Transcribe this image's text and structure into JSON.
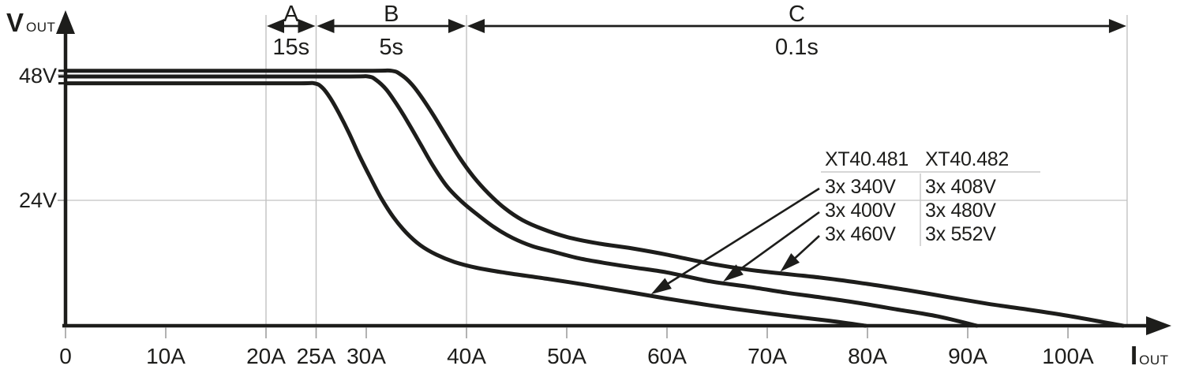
{
  "chart_data": {
    "type": "line",
    "title": "",
    "xlabel": {
      "main": "I",
      "sub": "OUT"
    },
    "ylabel": {
      "main": "V",
      "sub": "OUT"
    },
    "xlim": [
      0,
      108.5
    ],
    "ylim": [
      0,
      56
    ],
    "grid": {
      "vertical_amps": [
        20,
        25,
        40,
        105.9
      ],
      "horizontal_volts": [
        24
      ]
    },
    "x_ticks": [
      {
        "value": 0,
        "label": "0"
      },
      {
        "value": 10,
        "label": "10A"
      },
      {
        "value": 20,
        "label": "20A"
      },
      {
        "value": 25,
        "label": "25A"
      },
      {
        "value": 30,
        "label": "30A"
      },
      {
        "value": 40,
        "label": "40A"
      },
      {
        "value": 50,
        "label": "50A"
      },
      {
        "value": 60,
        "label": "60A"
      },
      {
        "value": 70,
        "label": "70A"
      },
      {
        "value": 80,
        "label": "80A"
      },
      {
        "value": 90,
        "label": "90A"
      },
      {
        "value": 100,
        "label": "100A"
      }
    ],
    "y_ticks": [
      {
        "value": 24,
        "label": "24V"
      },
      {
        "value": 48,
        "label": "48V"
      }
    ],
    "zones": [
      {
        "label": "A",
        "duration": "15s",
        "from_amps": 20,
        "to_amps": 25
      },
      {
        "label": "B",
        "duration": "5s",
        "from_amps": 25,
        "to_amps": 40
      },
      {
        "label": "C",
        "duration": "0.1s",
        "from_amps": 40,
        "to_amps": 105.9
      }
    ],
    "series": [
      {
        "name": "3x 340V / 3x 408V",
        "points": [
          [
            0,
            46.4
          ],
          [
            12,
            46.4
          ],
          [
            23,
            46.4
          ],
          [
            24.8,
            46.4
          ],
          [
            25.6,
            45.6
          ],
          [
            26.4,
            43.6
          ],
          [
            27.3,
            40.6
          ],
          [
            28.3,
            36.8
          ],
          [
            29.3,
            32.6
          ],
          [
            30.4,
            28.4
          ],
          [
            31.5,
            24.4
          ],
          [
            32.7,
            20.8
          ],
          [
            34,
            17.8
          ],
          [
            35.4,
            15.4
          ],
          [
            37,
            13.6
          ],
          [
            38.8,
            12.2
          ],
          [
            41,
            11.1
          ],
          [
            44,
            10.1
          ],
          [
            48,
            9
          ],
          [
            52,
            7.8
          ],
          [
            56,
            6.5
          ],
          [
            60,
            5.2
          ],
          [
            64.3,
            3.9
          ],
          [
            68,
            2.9
          ],
          [
            72,
            1.9
          ],
          [
            76,
            1
          ],
          [
            79.8,
            0
          ]
        ]
      },
      {
        "name": "3x 400V / 3x 480V",
        "points": [
          [
            0,
            47.7
          ],
          [
            15,
            47.7
          ],
          [
            28,
            47.7
          ],
          [
            30.2,
            47.7
          ],
          [
            31,
            47
          ],
          [
            32,
            45.2
          ],
          [
            33,
            42.5
          ],
          [
            34.2,
            38.8
          ],
          [
            35.4,
            34.8
          ],
          [
            36.6,
            30.8
          ],
          [
            38,
            26.8
          ],
          [
            39.5,
            23.8
          ],
          [
            41,
            21.4
          ],
          [
            42.8,
            18.8
          ],
          [
            44.6,
            16.8
          ],
          [
            46.6,
            15.2
          ],
          [
            48.6,
            14.2
          ],
          [
            51,
            13
          ],
          [
            53.5,
            12.1
          ],
          [
            56.5,
            11.2
          ],
          [
            60,
            10.2
          ],
          [
            64.3,
            8.5
          ],
          [
            68,
            7.5
          ],
          [
            72,
            6.3
          ],
          [
            75.4,
            5.4
          ],
          [
            79,
            4.4
          ],
          [
            83,
            3.1
          ],
          [
            87,
            1.8
          ],
          [
            90.9,
            0
          ]
        ]
      },
      {
        "name": "3x 460V / 3x 552V",
        "points": [
          [
            0,
            48.8
          ],
          [
            16,
            48.8
          ],
          [
            30,
            48.8
          ],
          [
            32.5,
            48.8
          ],
          [
            33.5,
            48
          ],
          [
            34.5,
            46.3
          ],
          [
            35.5,
            43.8
          ],
          [
            36.7,
            40.3
          ],
          [
            38,
            36.2
          ],
          [
            39.3,
            32.2
          ],
          [
            40.7,
            28.5
          ],
          [
            42.2,
            25.3
          ],
          [
            43.8,
            22.5
          ],
          [
            45.6,
            20.2
          ],
          [
            47.6,
            18.5
          ],
          [
            50,
            17
          ],
          [
            53,
            15.8
          ],
          [
            56.5,
            14.8
          ],
          [
            60,
            13.6
          ],
          [
            64.3,
            11.9
          ],
          [
            69,
            10.5
          ],
          [
            75.4,
            9.2
          ],
          [
            80,
            8
          ],
          [
            84,
            6.8
          ],
          [
            88,
            5.5
          ],
          [
            92,
            4.2
          ],
          [
            96,
            3.1
          ],
          [
            100,
            1.9
          ],
          [
            105.5,
            0
          ]
        ]
      }
    ],
    "legend": {
      "columns": [
        "XT40.481",
        "XT40.482"
      ],
      "rows": [
        [
          "3x 340V",
          "3x 408V"
        ],
        [
          "3x 400V",
          "3x 480V"
        ],
        [
          "3x 460V",
          "3x 552V"
        ]
      ],
      "arrows": [
        {
          "series": 0,
          "at_amps": 58.4
        },
        {
          "series": 1,
          "at_amps": 65.6
        },
        {
          "series": 2,
          "at_amps": 71.3
        }
      ]
    }
  },
  "colors": {
    "ink": "#1d1d1b",
    "grid": "#c2c2c2",
    "tick": "#9e9e9e",
    "legend_rule": "#c9c9c9",
    "background": "#ffffff"
  }
}
